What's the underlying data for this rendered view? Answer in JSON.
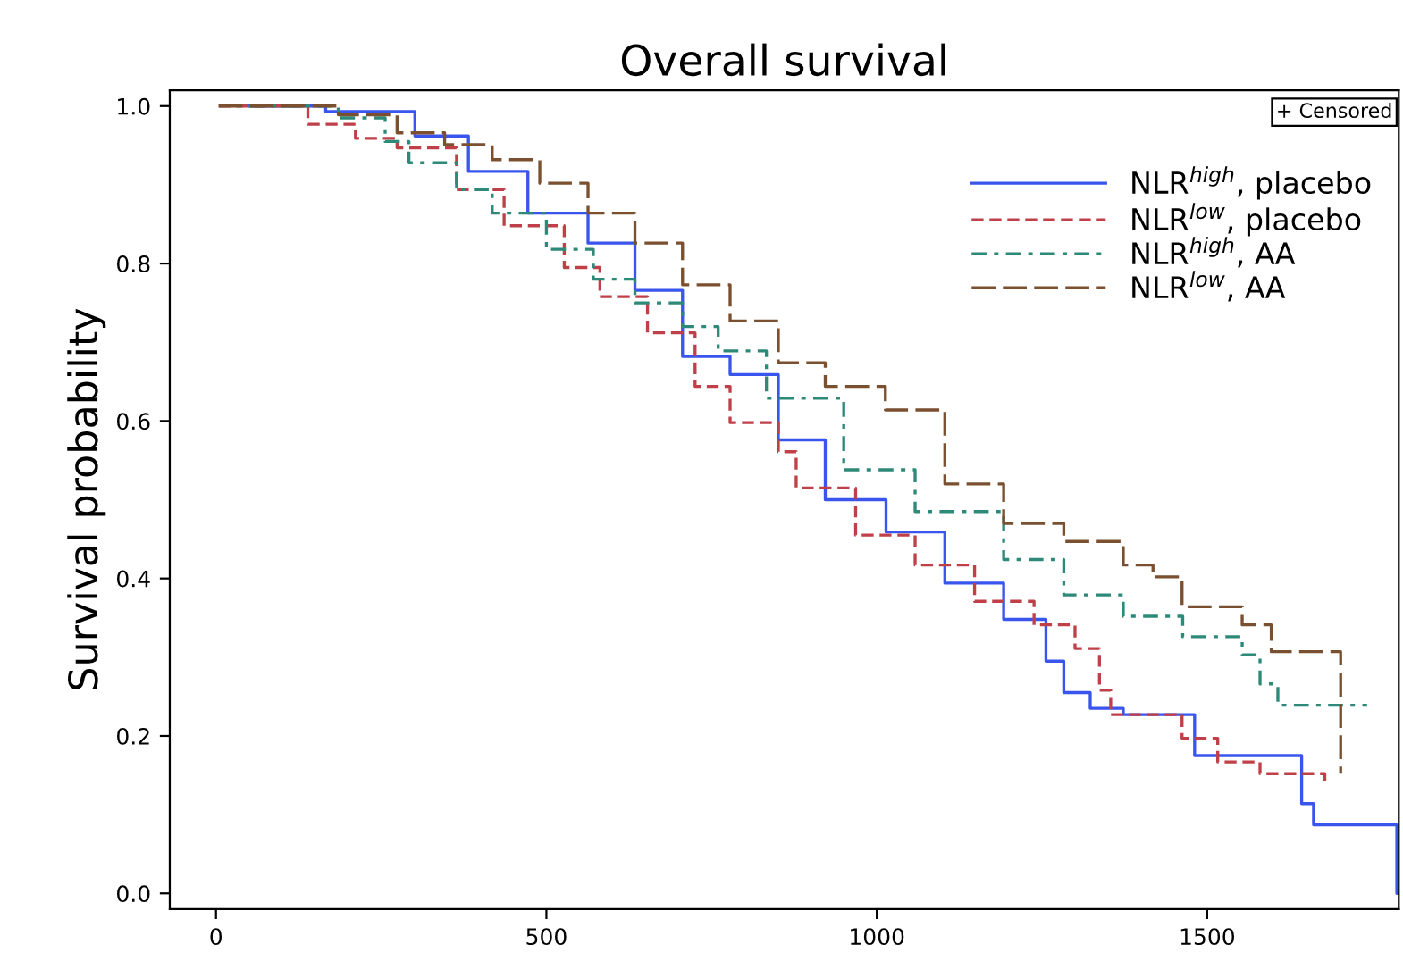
{
  "chart_data": {
    "type": "step",
    "title": "Overall survival",
    "ylabel": "Survival probability",
    "xlim": [
      -70,
      1790
    ],
    "xticks": [
      0,
      500,
      1000,
      1500
    ],
    "ylim": [
      -0.02,
      1.02
    ],
    "yticks": [
      {
        "value": 0,
        "label": "0.0"
      },
      0.2,
      0.4,
      0.6,
      0.8,
      {
        "value": 1,
        "label": "1.0"
      }
    ],
    "grid": false,
    "legend": "top right",
    "annotations": [
      "+ Censored"
    ],
    "series": [
      {
        "name": "NLR$^{high}$, placebo",
        "color": "#3a55ee",
        "line_style": "solid",
        "x": [
          50,
          166,
          301,
          382,
          472,
          563,
          634,
          706,
          778,
          851,
          922,
          1014,
          1103,
          1192,
          1256,
          1283,
          1323,
          1373,
          1481,
          1620,
          1643,
          1661,
          1787,
          1790
        ],
        "values": [
          1.0,
          0.993,
          0.962,
          0.917,
          0.864,
          0.826,
          0.766,
          0.682,
          0.659,
          0.576,
          0.5,
          0.459,
          0.394,
          0.348,
          0.295,
          0.255,
          0.235,
          0.227,
          0.175,
          0.175,
          0.114,
          0.087,
          0.0,
          0.0
        ]
      },
      {
        "name": "NLR$^{low}$, placebo",
        "color": "#c0404a",
        "line_style": "dashed",
        "x": [
          4,
          139,
          211,
          274,
          364,
          436,
          527,
          581,
          653,
          725,
          778,
          851,
          878,
          968,
          1058,
          1148,
          1238,
          1300,
          1337,
          1354,
          1462,
          1516,
          1580,
          1678
        ],
        "values": [
          1.0,
          0.977,
          0.959,
          0.947,
          0.894,
          0.848,
          0.795,
          0.758,
          0.712,
          0.644,
          0.598,
          0.561,
          0.515,
          0.455,
          0.417,
          0.371,
          0.341,
          0.311,
          0.258,
          0.227,
          0.197,
          0.167,
          0.152,
          0.136
        ]
      },
      {
        "name": "NLR$^{high}$, AA",
        "color": "#2e8a78",
        "line_style": "dashdot",
        "x": [
          50,
          185,
          256,
          292,
          364,
          418,
          500,
          571,
          634,
          706,
          760,
          833,
          950,
          1058,
          1192,
          1283,
          1373,
          1463,
          1553,
          1580,
          1607,
          1742
        ],
        "values": [
          1.0,
          0.985,
          0.955,
          0.928,
          0.894,
          0.864,
          0.818,
          0.78,
          0.75,
          0.72,
          0.689,
          0.629,
          0.538,
          0.485,
          0.424,
          0.379,
          0.352,
          0.326,
          0.303,
          0.266,
          0.239,
          0.239
        ]
      },
      {
        "name": "NLR$^{low}$, AA",
        "color": "#7a5030",
        "line_style": "longdash",
        "x": [
          4,
          185,
          274,
          346,
          418,
          490,
          563,
          634,
          706,
          778,
          851,
          922,
          1013,
          1103,
          1192,
          1283,
          1373,
          1418,
          1462,
          1553,
          1597,
          1701,
          1702
        ],
        "values": [
          1.0,
          0.989,
          0.966,
          0.951,
          0.932,
          0.902,
          0.864,
          0.826,
          0.773,
          0.727,
          0.674,
          0.644,
          0.614,
          0.52,
          0.47,
          0.447,
          0.417,
          0.402,
          0.364,
          0.341,
          0.307,
          0.307,
          0.152
        ]
      }
    ]
  }
}
